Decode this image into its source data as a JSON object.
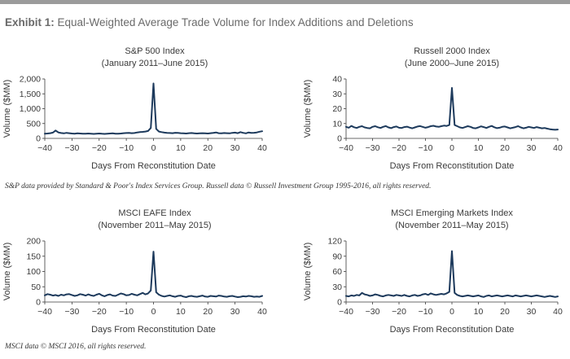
{
  "header": {
    "exhibit_label": "Exhibit 1:",
    "exhibit_title": "Equal-Weighted Average Trade Volume for Index Additions and Deletions"
  },
  "colors": {
    "line": "#1d3a5c",
    "axis": "#3a3a3a",
    "topbar": "#9b9b9b"
  },
  "notes": {
    "top": "S&P data provided by Standard & Poor's Index Services Group. Russell data © Russell Investment Group 1995-2016, all rights reserved.",
    "bottom": "MSCI data © MSCI 2016, all rights reserved."
  },
  "chart_data": [
    {
      "type": "line",
      "title": "S&P 500 Index",
      "subtitle": "(January 2011–June 2015)",
      "xlabel": "Days From Reconstitution Date",
      "ylabel": "Volume ($MM)",
      "xlim": [
        -40,
        40
      ],
      "ylim": [
        0,
        2000
      ],
      "xticks": [
        -40,
        -30,
        -20,
        -10,
        0,
        10,
        20,
        30,
        40
      ],
      "yticks": [
        0,
        500,
        1000,
        1500,
        2000
      ],
      "ytick_labels": [
        "0",
        "500",
        "1,000",
        "1,500",
        "2,000"
      ],
      "grid": false,
      "series": [
        {
          "x": [
            -40,
            -39,
            -38,
            -37,
            -36,
            -35,
            -34,
            -33,
            -32,
            -31,
            -30,
            -29,
            -28,
            -27,
            -26,
            -25,
            -24,
            -23,
            -22,
            -21,
            -20,
            -19,
            -18,
            -17,
            -16,
            -15,
            -14,
            -13,
            -12,
            -11,
            -10,
            -9,
            -8,
            -7,
            -6,
            -5,
            -4,
            -3,
            -2,
            -1,
            0,
            1,
            2,
            3,
            4,
            5,
            6,
            7,
            8,
            9,
            10,
            11,
            12,
            13,
            14,
            15,
            16,
            17,
            18,
            19,
            20,
            21,
            22,
            23,
            24,
            25,
            26,
            27,
            28,
            29,
            30,
            31,
            32,
            33,
            34,
            35,
            36,
            37,
            38,
            39,
            40
          ],
          "values": [
            160,
            165,
            175,
            195,
            265,
            200,
            180,
            170,
            185,
            175,
            165,
            160,
            170,
            165,
            160,
            155,
            165,
            160,
            150,
            160,
            165,
            155,
            150,
            160,
            165,
            170,
            160,
            155,
            165,
            175,
            180,
            185,
            175,
            180,
            200,
            210,
            220,
            230,
            250,
            350,
            1850,
            320,
            230,
            210,
            195,
            185,
            180,
            175,
            190,
            185,
            175,
            170,
            165,
            175,
            180,
            170,
            165,
            170,
            175,
            170,
            165,
            175,
            185,
            200,
            175,
            170,
            180,
            175,
            170,
            185,
            195,
            175,
            210,
            185,
            170,
            200,
            185,
            190,
            200,
            225,
            240
          ]
        }
      ]
    },
    {
      "type": "line",
      "title": "Russell 2000 Index",
      "subtitle": "(June 2000–June 2015)",
      "xlabel": "Days From Reconstitution Date",
      "ylabel": "Volume ($MM)",
      "xlim": [
        -40,
        40
      ],
      "ylim": [
        0,
        40
      ],
      "xticks": [
        -40,
        -30,
        -20,
        -10,
        0,
        10,
        20,
        30,
        40
      ],
      "yticks": [
        0,
        10,
        20,
        30,
        40
      ],
      "ytick_labels": [
        "0",
        "10",
        "20",
        "30",
        "40"
      ],
      "grid": false,
      "series": [
        {
          "x": [
            -40,
            -39,
            -38,
            -37,
            -36,
            -35,
            -34,
            -33,
            -32,
            -31,
            -30,
            -29,
            -28,
            -27,
            -26,
            -25,
            -24,
            -23,
            -22,
            -21,
            -20,
            -19,
            -18,
            -17,
            -16,
            -15,
            -14,
            -13,
            -12,
            -11,
            -10,
            -9,
            -8,
            -7,
            -6,
            -5,
            -4,
            -3,
            -2,
            -1,
            0,
            1,
            2,
            3,
            4,
            5,
            6,
            7,
            8,
            9,
            10,
            11,
            12,
            13,
            14,
            15,
            16,
            17,
            18,
            19,
            20,
            21,
            22,
            23,
            24,
            25,
            26,
            27,
            28,
            29,
            30,
            31,
            32,
            33,
            34,
            35,
            36,
            37,
            38,
            39,
            40
          ],
          "values": [
            7.8,
            7.2,
            8.4,
            7.5,
            7.0,
            7.8,
            8.2,
            7.4,
            7.0,
            6.8,
            7.8,
            8.2,
            7.5,
            7.0,
            7.8,
            8.3,
            7.4,
            6.9,
            7.6,
            8.0,
            7.2,
            7.0,
            7.6,
            7.9,
            7.3,
            6.8,
            7.4,
            8.0,
            8.3,
            7.7,
            7.2,
            7.6,
            8.2,
            8.5,
            8.0,
            7.8,
            8.2,
            8.6,
            8.4,
            9.0,
            34.0,
            9.0,
            8.2,
            7.4,
            7.0,
            7.6,
            8.2,
            7.8,
            7.0,
            6.8,
            7.4,
            8.1,
            7.6,
            7.0,
            7.8,
            8.4,
            7.5,
            6.9,
            7.2,
            7.8,
            8.0,
            7.4,
            6.8,
            7.2,
            7.6,
            8.2,
            7.4,
            6.8,
            7.2,
            7.8,
            7.4,
            7.0,
            7.6,
            7.2,
            6.8,
            7.0,
            6.6,
            6.2,
            6.0,
            5.8,
            6.0
          ]
        }
      ]
    },
    {
      "type": "line",
      "title": "MSCI EAFE Index",
      "subtitle": "(November 2011–May 2015)",
      "xlabel": "Days From Reconstitution Date",
      "ylabel": "Volume ($MM)",
      "xlim": [
        -40,
        40
      ],
      "ylim": [
        0,
        200
      ],
      "xticks": [
        -40,
        -30,
        -20,
        -10,
        0,
        10,
        20,
        30,
        40
      ],
      "yticks": [
        0,
        50,
        100,
        150,
        200
      ],
      "ytick_labels": [
        "0",
        "50",
        "100",
        "150",
        "200"
      ],
      "grid": false,
      "series": [
        {
          "x": [
            -40,
            -39,
            -38,
            -37,
            -36,
            -35,
            -34,
            -33,
            -32,
            -31,
            -30,
            -29,
            -28,
            -27,
            -26,
            -25,
            -24,
            -23,
            -22,
            -21,
            -20,
            -19,
            -18,
            -17,
            -16,
            -15,
            -14,
            -13,
            -12,
            -11,
            -10,
            -9,
            -8,
            -7,
            -6,
            -5,
            -4,
            -3,
            -2,
            -1,
            0,
            1,
            2,
            3,
            4,
            5,
            6,
            7,
            8,
            9,
            10,
            11,
            12,
            13,
            14,
            15,
            16,
            17,
            18,
            19,
            20,
            21,
            22,
            23,
            24,
            25,
            26,
            27,
            28,
            29,
            30,
            31,
            32,
            33,
            34,
            35,
            36,
            37,
            38,
            39,
            40
          ],
          "values": [
            22,
            26,
            24,
            21,
            23,
            20,
            24,
            22,
            25,
            26,
            23,
            20,
            22,
            26,
            24,
            21,
            25,
            22,
            20,
            24,
            27,
            22,
            19,
            23,
            25,
            21,
            20,
            24,
            28,
            26,
            22,
            23,
            27,
            24,
            22,
            26,
            30,
            25,
            28,
            38,
            165,
            32,
            24,
            20,
            18,
            20,
            22,
            19,
            17,
            20,
            21,
            18,
            16,
            19,
            20,
            18,
            17,
            19,
            21,
            18,
            17,
            20,
            19,
            18,
            21,
            20,
            18,
            17,
            19,
            20,
            18,
            16,
            17,
            19,
            18,
            20,
            19,
            17,
            18,
            17,
            20
          ]
        }
      ]
    },
    {
      "type": "line",
      "title": "MSCI Emerging Markets Index",
      "subtitle": "(November 2011–May 2015)",
      "xlabel": "Days From Reconstitution Date",
      "ylabel": "Volume ($MM)",
      "xlim": [
        -40,
        40
      ],
      "ylim": [
        0,
        120
      ],
      "xticks": [
        -40,
        -30,
        -20,
        -10,
        0,
        10,
        20,
        30,
        40
      ],
      "yticks": [
        0,
        30,
        60,
        90,
        120
      ],
      "ytick_labels": [
        "0",
        "30",
        "60",
        "90",
        "120"
      ],
      "grid": false,
      "series": [
        {
          "x": [
            -40,
            -39,
            -38,
            -37,
            -36,
            -35,
            -34,
            -33,
            -32,
            -31,
            -30,
            -29,
            -28,
            -27,
            -26,
            -25,
            -24,
            -23,
            -22,
            -21,
            -20,
            -19,
            -18,
            -17,
            -16,
            -15,
            -14,
            -13,
            -12,
            -11,
            -10,
            -9,
            -8,
            -7,
            -6,
            -5,
            -4,
            -3,
            -2,
            -1,
            0,
            1,
            2,
            3,
            4,
            5,
            6,
            7,
            8,
            9,
            10,
            11,
            12,
            13,
            14,
            15,
            16,
            17,
            18,
            19,
            20,
            21,
            22,
            23,
            24,
            25,
            26,
            27,
            28,
            29,
            30,
            31,
            32,
            33,
            34,
            35,
            36,
            37,
            38,
            39,
            40
          ],
          "values": [
            12,
            11,
            13,
            12,
            14,
            13,
            18,
            15,
            14,
            12,
            13,
            15,
            14,
            12,
            11,
            13,
            14,
            13,
            12,
            14,
            13,
            12,
            14,
            12,
            11,
            13,
            14,
            12,
            13,
            15,
            16,
            14,
            17,
            15,
            14,
            15,
            16,
            15,
            17,
            20,
            100,
            18,
            14,
            12,
            11,
            12,
            13,
            12,
            11,
            12,
            13,
            11,
            10,
            12,
            13,
            11,
            12,
            13,
            12,
            11,
            12,
            13,
            12,
            11,
            13,
            12,
            11,
            12,
            13,
            12,
            11,
            12,
            13,
            12,
            11,
            10,
            11,
            12,
            11,
            10,
            11
          ]
        }
      ]
    }
  ]
}
